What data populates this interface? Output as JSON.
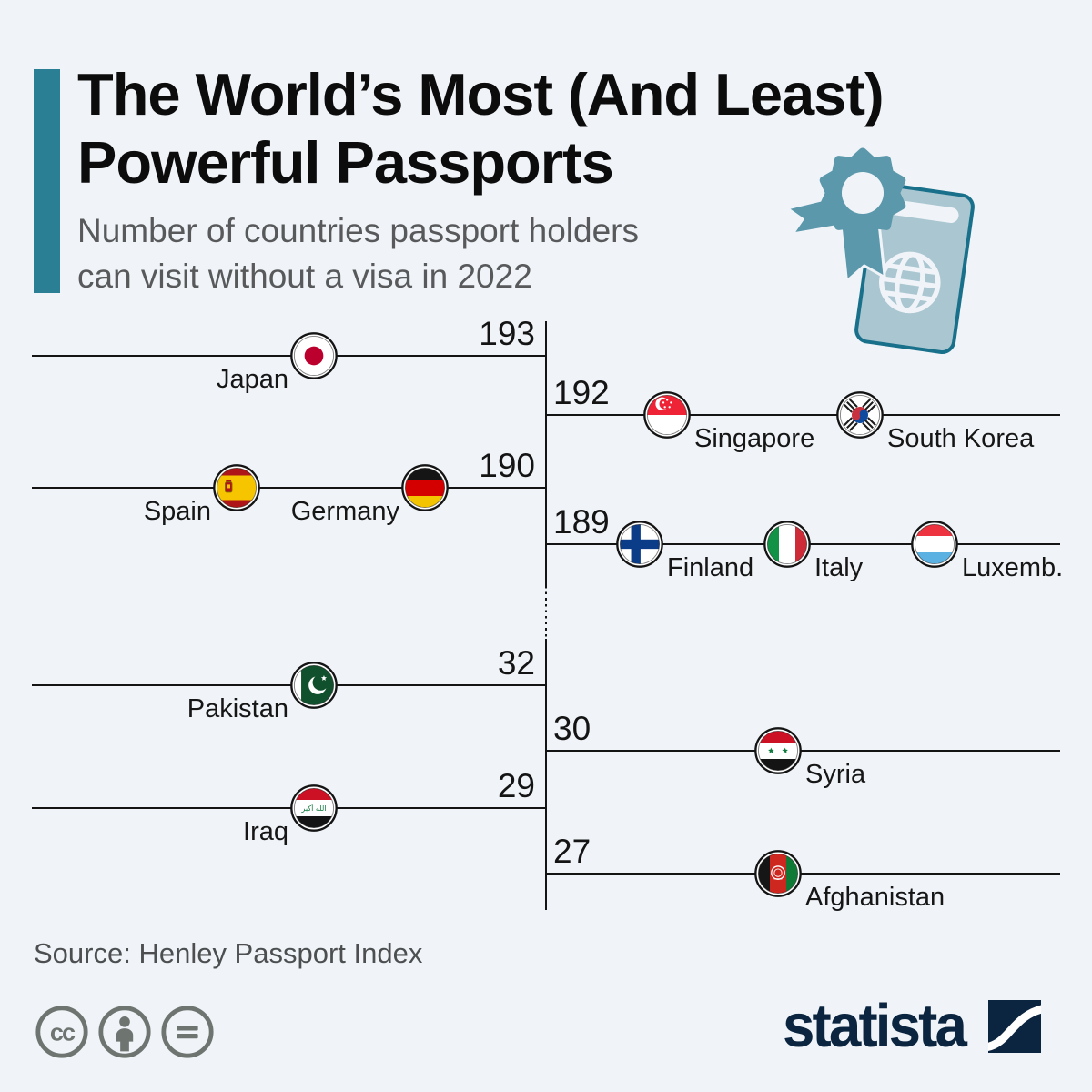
{
  "header": {
    "title_lines": [
      "The World’s Most (And Least)",
      "Powerful Passports"
    ],
    "subtitle_lines": [
      "Number of countries passport holders",
      "can visit without a visa in 2022"
    ],
    "illustration": "passport-with-ribbon-badge-icon"
  },
  "colors": {
    "background": "#f0f4f8",
    "accent_teal": "#2b7f95",
    "line_black": "#141414",
    "subtitle_gray": "#58595b",
    "source_gray": "#4c4e50",
    "license_gray": "#6e7470",
    "brand_navy": "#0b2540",
    "illustration_fill": "#a9c6d1",
    "illustration_stroke": "#19708a",
    "illustration_badge": "#5b98ab"
  },
  "chart_data": {
    "type": "bar",
    "variant": "diverging-rank-lines",
    "title": "The World’s Most (And Least) Powerful Passports",
    "subtitle": "Number of countries passport holders can visit without a visa in 2022",
    "year": 2022,
    "unit": "countries visitable without a visa",
    "axis_break_between_values": [
      189,
      32
    ],
    "rows": [
      {
        "value": 193,
        "side": "left",
        "countries": [
          {
            "name": "Japan",
            "flag": "japan"
          }
        ]
      },
      {
        "value": 192,
        "side": "right",
        "countries": [
          {
            "name": "Singapore",
            "flag": "singapore"
          },
          {
            "name": "South Korea",
            "flag": "south-korea"
          }
        ]
      },
      {
        "value": 190,
        "side": "left",
        "countries": [
          {
            "name": "Spain",
            "flag": "spain"
          },
          {
            "name": "Germany",
            "flag": "germany"
          }
        ]
      },
      {
        "value": 189,
        "side": "right",
        "countries": [
          {
            "name": "Finland",
            "flag": "finland"
          },
          {
            "name": "Italy",
            "flag": "italy"
          },
          {
            "name": "Luxemb.",
            "flag": "luxembourg"
          }
        ]
      },
      {
        "value": 32,
        "side": "left",
        "countries": [
          {
            "name": "Pakistan",
            "flag": "pakistan"
          }
        ]
      },
      {
        "value": 30,
        "side": "right",
        "countries": [
          {
            "name": "Syria",
            "flag": "syria"
          }
        ]
      },
      {
        "value": 29,
        "side": "left",
        "countries": [
          {
            "name": "Iraq",
            "flag": "iraq"
          }
        ]
      },
      {
        "value": 27,
        "side": "right",
        "countries": [
          {
            "name": "Afghanistan",
            "flag": "afghanistan"
          }
        ]
      }
    ]
  },
  "footer": {
    "source": "Source: Henley Passport Index",
    "license_icons": [
      "cc-icon",
      "attribution-icon",
      "no-derivatives-icon"
    ],
    "brand": "statista"
  }
}
